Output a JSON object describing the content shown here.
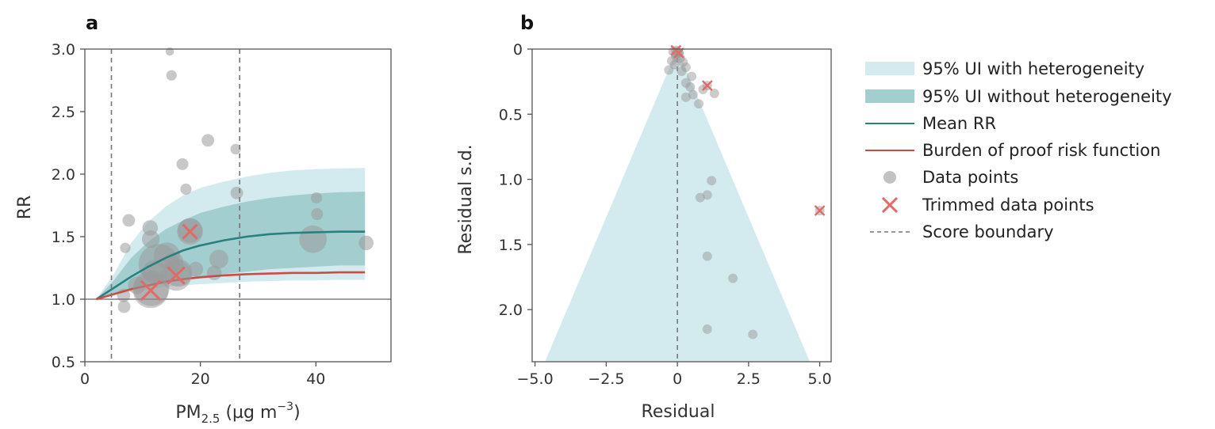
{
  "colors": {
    "ui_with_het": "#d3ebef",
    "ui_without_het": "#a3ced0",
    "mean_rr": "#2a7f7f",
    "burden": "#cf4a45",
    "points": "#9a9a9a",
    "trimmed": "#e06a65",
    "boundary": "#777777",
    "funnel": "#d3ebef"
  },
  "legend": {
    "with_het": "95% UI with heterogeneity",
    "without_het": "95% UI without heterogeneity",
    "mean_rr": "Mean RR",
    "burden": "Burden of proof risk function",
    "data_points": "Data points",
    "trimmed": "Trimmed data points",
    "boundary": "Score boundary"
  },
  "chart_data": [
    {
      "panel": "a",
      "type": "line",
      "xlabel_main": "PM",
      "xlabel_sub": "2.5",
      "xlabel_unit": " (µg m",
      "xlabel_sup": "−3",
      "xlabel_close": ")",
      "ylabel": "RR",
      "xlim": [
        0,
        53
      ],
      "ylim": [
        0.5,
        3.0
      ],
      "xticks": [
        0,
        20,
        40
      ],
      "xtick_labels": [
        "0",
        "20",
        "40"
      ],
      "yticks": [
        0.5,
        1.0,
        1.5,
        2.0,
        2.5,
        3.0
      ],
      "ytick_labels": [
        "0.5",
        "1.0",
        "1.5",
        "2.0",
        "2.5",
        "3.0"
      ],
      "reference_line": 1.0,
      "score_boundaries": [
        4.6,
        26.8
      ],
      "series": [
        {
          "name": "Mean RR",
          "x": [
            2,
            5,
            8,
            11,
            14,
            17,
            20,
            24,
            28,
            32,
            36,
            40,
            44,
            48.5
          ],
          "values": [
            1.0,
            1.09,
            1.18,
            1.26,
            1.33,
            1.39,
            1.43,
            1.47,
            1.5,
            1.52,
            1.53,
            1.535,
            1.54,
            1.54
          ]
        },
        {
          "name": "Burden of proof risk function",
          "x": [
            2,
            5,
            8,
            11,
            14,
            17,
            20,
            24,
            28,
            32,
            36,
            40,
            44,
            48.5
          ],
          "values": [
            1.0,
            1.04,
            1.08,
            1.11,
            1.14,
            1.16,
            1.175,
            1.19,
            1.2,
            1.205,
            1.21,
            1.21,
            1.215,
            1.215
          ]
        },
        {
          "name": "95% UI with heterogeneity",
          "x": [
            2,
            5,
            8,
            11,
            14,
            17,
            20,
            24,
            28,
            32,
            36,
            40,
            44,
            48.5
          ],
          "upper": [
            1.0,
            1.2,
            1.45,
            1.62,
            1.74,
            1.83,
            1.89,
            1.94,
            1.98,
            2.01,
            2.03,
            2.04,
            2.045,
            2.05
          ],
          "lower": [
            1.0,
            1.03,
            1.06,
            1.08,
            1.1,
            1.11,
            1.12,
            1.13,
            1.14,
            1.145,
            1.15,
            1.15,
            1.155,
            1.155
          ]
        },
        {
          "name": "95% UI without heterogeneity",
          "x": [
            2,
            5,
            8,
            11,
            14,
            17,
            20,
            24,
            28,
            32,
            36,
            40,
            44,
            48.5
          ],
          "upper": [
            1.0,
            1.15,
            1.33,
            1.46,
            1.56,
            1.63,
            1.69,
            1.74,
            1.78,
            1.81,
            1.83,
            1.845,
            1.855,
            1.86
          ],
          "lower": [
            1.0,
            1.05,
            1.08,
            1.11,
            1.14,
            1.16,
            1.18,
            1.2,
            1.22,
            1.24,
            1.25,
            1.26,
            1.27,
            1.27
          ]
        }
      ],
      "points": [
        {
          "x": 6.7,
          "y": 1.03,
          "w": 0.6
        },
        {
          "x": 6.8,
          "y": 0.94,
          "w": 0.55
        },
        {
          "x": 7.0,
          "y": 1.41,
          "w": 0.4
        },
        {
          "x": 7.6,
          "y": 1.63,
          "w": 0.55
        },
        {
          "x": 9.0,
          "y": 1.11,
          "w": 0.9
        },
        {
          "x": 11.3,
          "y": 1.57,
          "w": 0.75
        },
        {
          "x": 11.4,
          "y": 1.48,
          "w": 0.9
        },
        {
          "x": 11.5,
          "y": 1.09,
          "w": 2.2
        },
        {
          "x": 12.0,
          "y": 1.22,
          "w": 1.3
        },
        {
          "x": 12.8,
          "y": 1.28,
          "w": 2.5
        },
        {
          "x": 14.2,
          "y": 1.35,
          "w": 1.5
        },
        {
          "x": 15.0,
          "y": 2.79,
          "w": 0.4
        },
        {
          "x": 15.4,
          "y": 1.3,
          "w": 1.0
        },
        {
          "x": 16.2,
          "y": 1.21,
          "w": 1.6
        },
        {
          "x": 16.9,
          "y": 2.08,
          "w": 0.5
        },
        {
          "x": 17.5,
          "y": 1.88,
          "w": 0.45
        },
        {
          "x": 18.2,
          "y": 1.55,
          "w": 1.4
        },
        {
          "x": 19.2,
          "y": 1.24,
          "w": 0.7
        },
        {
          "x": 21.3,
          "y": 2.27,
          "w": 0.55
        },
        {
          "x": 22.4,
          "y": 1.21,
          "w": 0.7
        },
        {
          "x": 23.2,
          "y": 1.32,
          "w": 1.0
        },
        {
          "x": 26.1,
          "y": 2.2,
          "w": 0.4
        },
        {
          "x": 26.3,
          "y": 1.85,
          "w": 0.55
        },
        {
          "x": 39.5,
          "y": 1.48,
          "w": 1.6
        },
        {
          "x": 40.1,
          "y": 1.81,
          "w": 0.45
        },
        {
          "x": 40.2,
          "y": 1.68,
          "w": 0.5
        },
        {
          "x": 48.7,
          "y": 1.45,
          "w": 0.7
        },
        {
          "x": 14.7,
          "y": 2.98,
          "w": 0.25
        }
      ],
      "trimmed": [
        {
          "x": 11.4,
          "y": 1.07,
          "w": 1.7
        },
        {
          "x": 15.8,
          "y": 1.19,
          "w": 1.4
        },
        {
          "x": 18.2,
          "y": 1.54,
          "w": 1.1
        }
      ]
    },
    {
      "panel": "b",
      "type": "scatter",
      "xlabel": "Residual",
      "ylabel": "Residual s.d.",
      "xlim": [
        -5.1,
        5.4
      ],
      "ylim": [
        2.4,
        0.0
      ],
      "y_inverted": true,
      "xticks": [
        -5.0,
        -2.5,
        0.0,
        2.5,
        5.0
      ],
      "xtick_labels": [
        "−5.0",
        "−2.5",
        "0",
        "2.5",
        "5.0"
      ],
      "yticks": [
        0,
        0.5,
        1.0,
        1.5,
        2.0
      ],
      "ytick_labels": [
        "0",
        "0.5",
        "1.0",
        "1.5",
        "2.0"
      ],
      "score_boundary": 0.0,
      "funnel": {
        "apex_x": 0.0,
        "apex_y": 0.0,
        "base_y": 2.4,
        "base_left": -4.65,
        "base_right": 4.65
      },
      "points": [
        {
          "x": -0.15,
          "y": 0.02
        },
        {
          "x": 0.05,
          "y": 0.03
        },
        {
          "x": -0.05,
          "y": 0.06
        },
        {
          "x": 0.1,
          "y": 0.07
        },
        {
          "x": -0.2,
          "y": 0.09
        },
        {
          "x": 0.2,
          "y": 0.1
        },
        {
          "x": -0.1,
          "y": 0.12
        },
        {
          "x": 0.3,
          "y": 0.14
        },
        {
          "x": -0.3,
          "y": 0.16
        },
        {
          "x": 0.15,
          "y": 0.17
        },
        {
          "x": 0.5,
          "y": 0.21
        },
        {
          "x": 0.3,
          "y": 0.26
        },
        {
          "x": 0.45,
          "y": 0.29
        },
        {
          "x": 0.9,
          "y": 0.31
        },
        {
          "x": 0.55,
          "y": 0.35
        },
        {
          "x": 0.3,
          "y": 0.37
        },
        {
          "x": 1.3,
          "y": 0.34
        },
        {
          "x": 0.75,
          "y": 0.42
        },
        {
          "x": 1.2,
          "y": 1.01
        },
        {
          "x": 1.05,
          "y": 1.12
        },
        {
          "x": 0.8,
          "y": 1.14
        },
        {
          "x": 1.05,
          "y": 1.59
        },
        {
          "x": 1.95,
          "y": 1.76
        },
        {
          "x": 1.05,
          "y": 2.15
        },
        {
          "x": 2.65,
          "y": 2.19
        },
        {
          "x": -0.05,
          "y": 0.04
        },
        {
          "x": 0.0,
          "y": 0.02
        }
      ],
      "trimmed": [
        {
          "x": -0.05,
          "y": 0.01
        },
        {
          "x": 0.05,
          "y": 0.03
        },
        {
          "x": 1.05,
          "y": 0.28
        },
        {
          "x": 5.0,
          "y": 1.24
        }
      ]
    }
  ],
  "panel_labels": {
    "a": "a",
    "b": "b"
  }
}
